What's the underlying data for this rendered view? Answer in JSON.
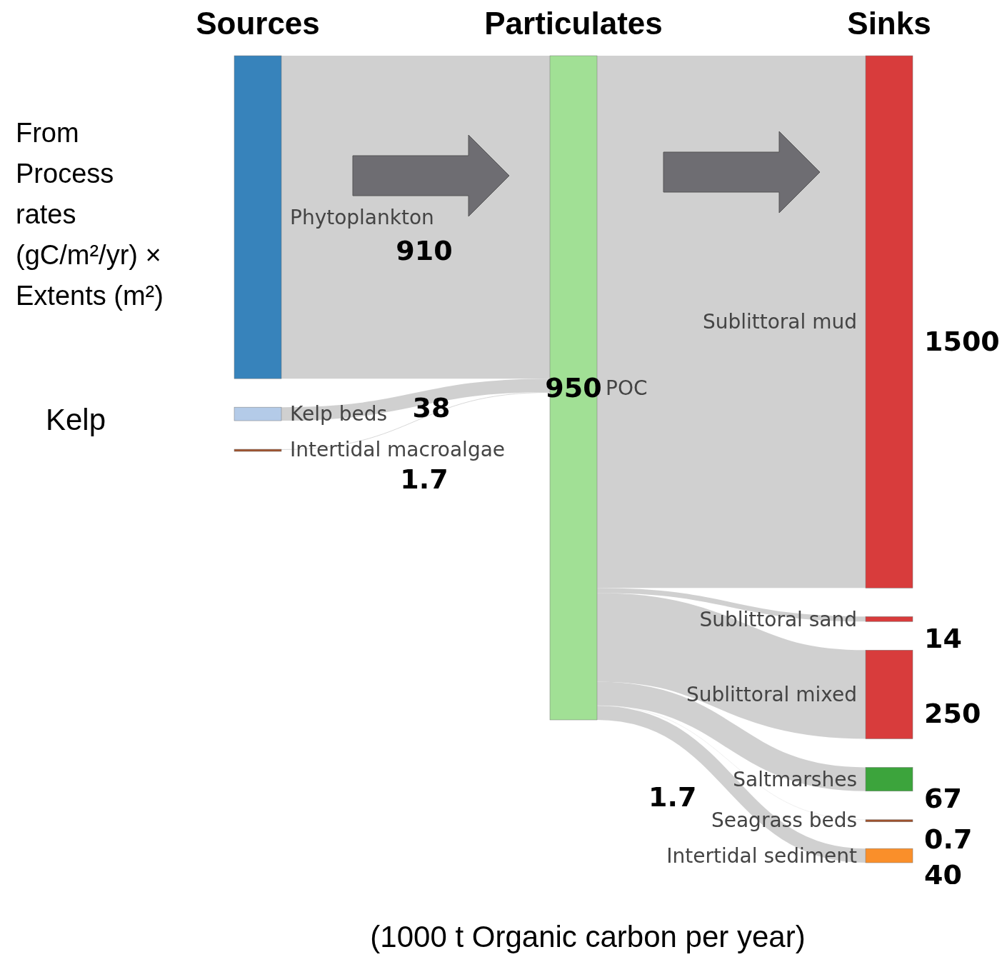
{
  "chart_data": {
    "type": "other",
    "xlabel": "(1000 t Organic carbon per year)",
    "categories": [
      "Phytoplankton",
      "Kelp beds",
      "Intertidal macroalgae",
      "POC",
      "Sublittoral mud",
      "Sublittoral sand",
      "Sublittoral mixed",
      "Saltmarshes",
      "Seagrass beds",
      "Intertidal sediment"
    ],
    "colors": [
      "#3783bb",
      "#b4cbe8",
      "#a0522d",
      "#a1e095",
      "#d83c3c",
      "#d83c3c",
      "#d83c3c",
      "#3ca43c",
      "#a0522d",
      "#fa8f2a"
    ],
    "series": [
      {
        "values": [
          910,
          38,
          1.7,
          null,
          null,
          null,
          null,
          null,
          null,
          null
        ]
      },
      {
        "values": [
          null,
          null,
          null,
          950,
          null,
          null,
          null,
          null,
          null,
          null
        ]
      },
      {
        "values": [
          null,
          null,
          null,
          null,
          1500,
          14,
          250,
          67,
          0.7,
          40
        ]
      }
    ],
    "data_labels": true,
    "annotations": [
      "Sources",
      "Particulates",
      "Sinks",
      "From Process rates (gC/m²/yr) × Extents (m²)",
      "Kelp",
      "1.7"
    ]
  }
}
